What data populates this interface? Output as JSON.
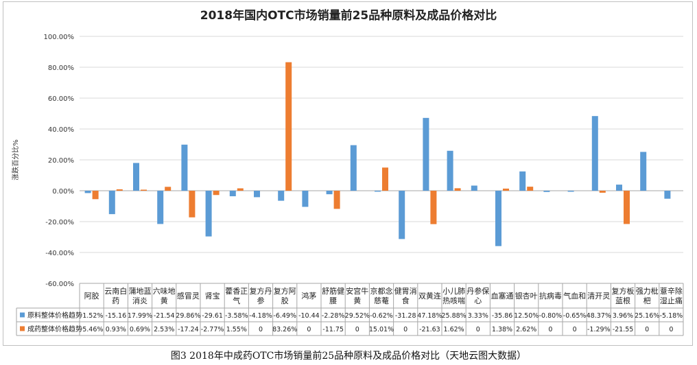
{
  "chart_data": {
    "type": "bar",
    "title": "2018年国内OTC市场销量前25品种原料及成品价格对比",
    "ylabel": "涨跌百分比%",
    "ylim": [
      -60,
      100
    ],
    "yticks": [
      "-60.00%",
      "-40.00%",
      "-20.00%",
      "0.00%",
      "20.00%",
      "40.00%",
      "60.00%",
      "80.00%",
      "100.00%"
    ],
    "grid": true,
    "legend": "data-table",
    "categories": [
      "阿胶",
      "云南白药",
      "蒲地蓝消炎",
      "六味地黄",
      "感冒灵",
      "肾宝",
      "藿香正气",
      "复方丹参",
      "复方阿胶",
      "鸿茅",
      "舒筋健腰",
      "安宫牛黄",
      "京都念慈菴",
      "健胃消食",
      "双黄连",
      "小儿肺热咳喘",
      "丹参保心",
      "血塞通",
      "银杏叶",
      "抗病毒",
      "气血和",
      "清开灵",
      "复方板蓝根",
      "强力枇杷",
      "薏辛除湿止痛"
    ],
    "category_lines": [
      [
        "阿胶"
      ],
      [
        "云南白",
        "药"
      ],
      [
        "蒲地蓝",
        "消炎"
      ],
      [
        "六味地",
        "黄"
      ],
      [
        "感冒灵"
      ],
      [
        "肾宝"
      ],
      [
        "藿香正",
        "气"
      ],
      [
        "复方丹",
        "参"
      ],
      [
        "复方阿",
        "胶"
      ],
      [
        "鸿茅"
      ],
      [
        "舒筋健",
        "腰"
      ],
      [
        "安宫牛",
        "黄"
      ],
      [
        "京都念",
        "慈菴"
      ],
      [
        "健胃消",
        "食"
      ],
      [
        "双黄连"
      ],
      [
        "小儿肺",
        "热咳喘"
      ],
      [
        "丹参保",
        "心"
      ],
      [
        "血塞通"
      ],
      [
        "银杏叶"
      ],
      [
        "抗病毒"
      ],
      [
        "气血和"
      ],
      [
        "清开灵"
      ],
      [
        "复方板",
        "蓝根"
      ],
      [
        "强力枇",
        "杷"
      ],
      [
        "薏辛除",
        "湿止痛"
      ]
    ],
    "series": [
      {
        "name": "原料整体价格趋势",
        "color": "#5b9bd5",
        "values": [
          -1.52,
          -15.16,
          17.99,
          -21.54,
          29.86,
          -29.61,
          -3.58,
          -4.18,
          -6.49,
          -10.44,
          -2.28,
          29.52,
          -0.62,
          -31.28,
          47.18,
          25.88,
          3.33,
          -35.86,
          12.5,
          -0.8,
          -0.65,
          48.37,
          3.96,
          25.16,
          -5.18
        ],
        "labels": [
          "-1.52%",
          "-15.16",
          "17.99%",
          "-21.54",
          "29.86%",
          "-29.61",
          "-3.58%",
          "-4.18%",
          "-6.49%",
          "-10.44",
          "-2.28%",
          "29.52%",
          "-0.62%",
          "-31.28",
          "47.18%",
          "25.88%",
          "3.33%",
          "-35.86",
          "12.50%",
          "-0.80%",
          "-0.65%",
          "48.37%",
          "3.96%",
          "25.16%",
          "-5.18%"
        ]
      },
      {
        "name": "成药整体价格趋势",
        "color": "#ed7d31",
        "values": [
          -5.46,
          0.93,
          0.69,
          2.53,
          -17.24,
          -2.77,
          1.55,
          0,
          83.26,
          0,
          -11.75,
          0,
          15.01,
          0,
          -21.63,
          1.62,
          0,
          1.38,
          2.62,
          0,
          0,
          -1.29,
          -21.55,
          0,
          0
        ],
        "labels": [
          "-5.46%",
          "0.93%",
          "0.69%",
          "2.53%",
          "-17.24",
          "-2.77%",
          "1.55%",
          "0",
          "83.26%",
          "0",
          "-11.75",
          "0",
          "15.01%",
          "0",
          "-21.63",
          "1.62%",
          "0",
          "1.38%",
          "2.62%",
          "0",
          "0",
          "-1.29%",
          "-21.55",
          "0",
          "0"
        ]
      }
    ]
  },
  "caption": "图3   2018年中成药OTC市场销量前25品种原料及成品价格对比（天地云图大数据）"
}
